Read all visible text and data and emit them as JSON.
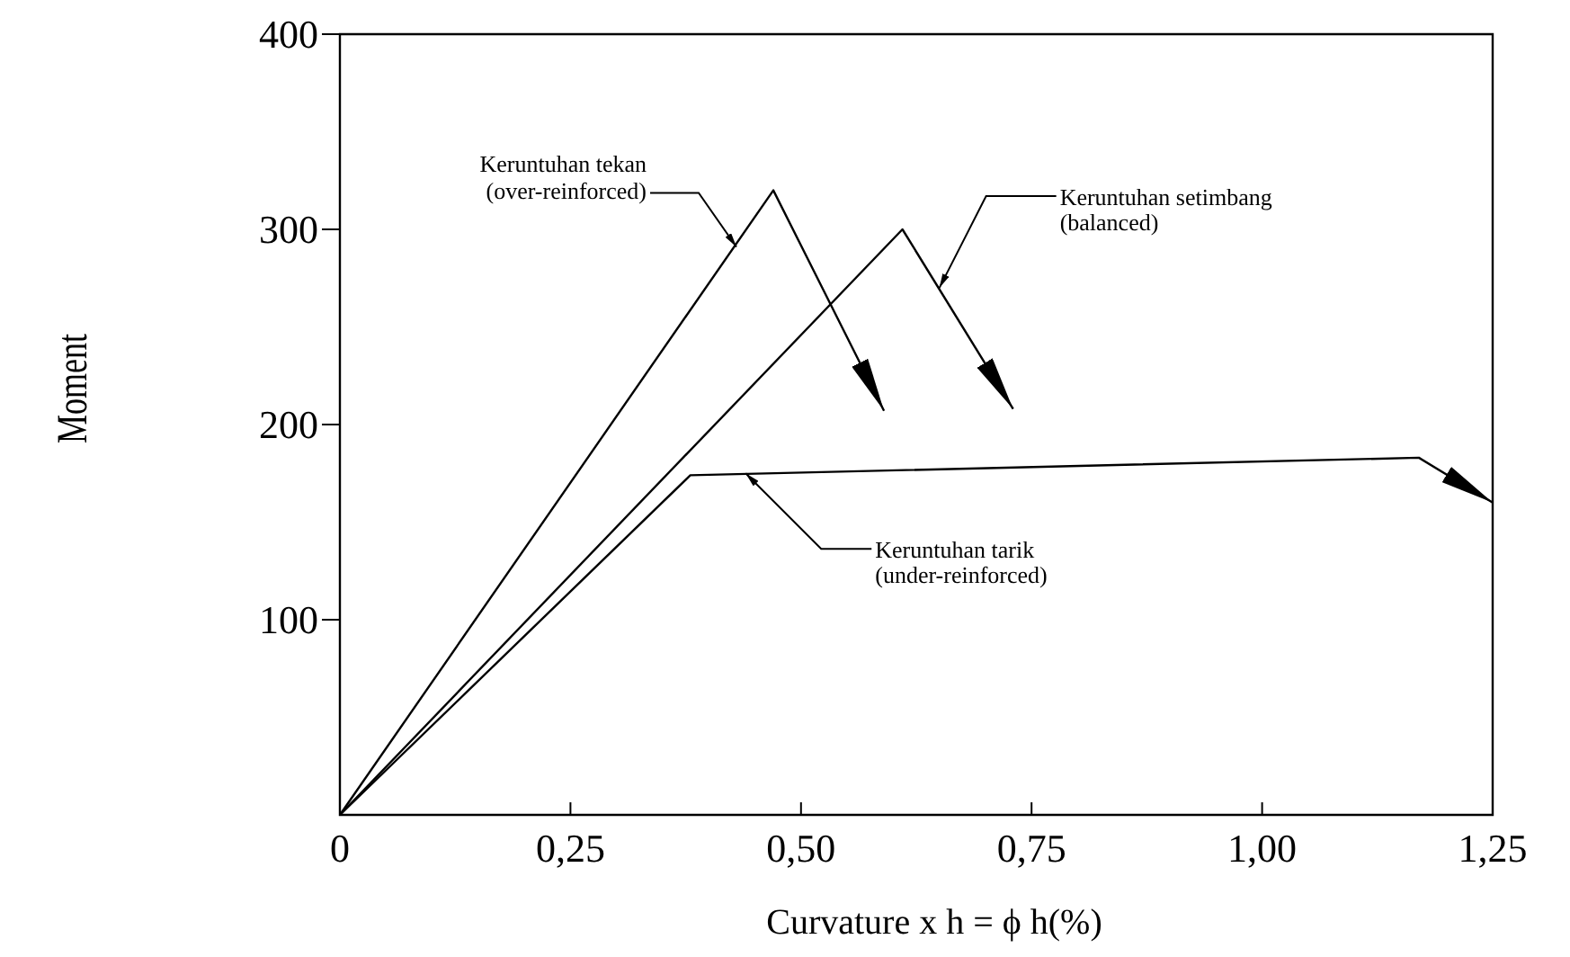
{
  "chart_data": {
    "type": "line",
    "xlabel": "Curvature x h = ϕ h(%)",
    "ylabel": "Moment",
    "xlim": [
      0,
      1.25
    ],
    "ylim": [
      0,
      400
    ],
    "xticks": [
      {
        "value": 0,
        "label": "0"
      },
      {
        "value": 0.25,
        "label": "0,25"
      },
      {
        "value": 0.5,
        "label": "0,50"
      },
      {
        "value": 0.75,
        "label": "0,75"
      },
      {
        "value": 1,
        "label": "1,00"
      },
      {
        "value": 1.25,
        "label": "1,25"
      }
    ],
    "yticks": [
      100,
      200,
      300,
      400
    ],
    "series": [
      {
        "color": "#000000",
        "x": [
          0,
          0.47,
          0.59
        ],
        "values": [
          0,
          320,
          207
        ]
      },
      {
        "color": "#000000",
        "x": [
          0,
          0.61,
          0.73
        ],
        "values": [
          0,
          300,
          208
        ]
      },
      {
        "color": "#000000",
        "x": [
          0,
          0.38,
          1.17,
          1.25
        ],
        "values": [
          0,
          174,
          183,
          160
        ]
      }
    ],
    "annotations": [
      {
        "text": "Keruntuhan tekan\n(over-reinforced)",
        "x": 0.43,
        "y": 291
      },
      {
        "text": "Keruntuhan setimbang\n(balanced)",
        "x": 0.65,
        "y": 270
      },
      {
        "text": "Keruntuhan tarik\n(under-reinforced)",
        "x": 0.44,
        "y": 175
      }
    ]
  }
}
